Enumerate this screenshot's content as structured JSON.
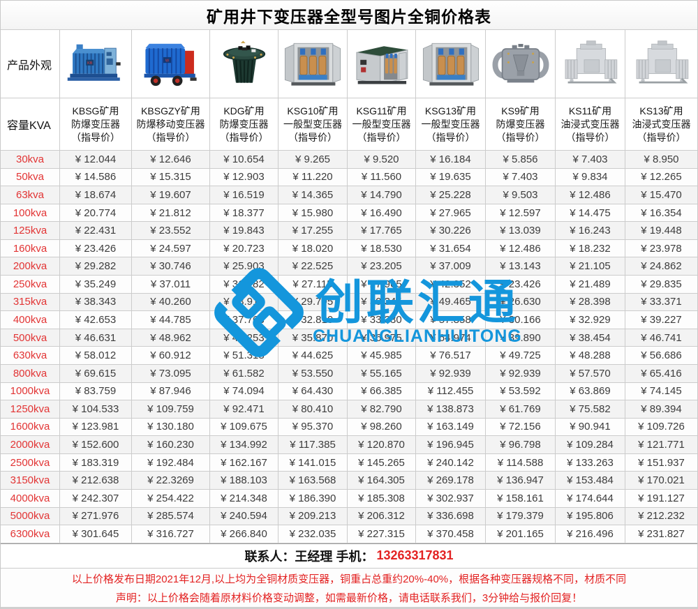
{
  "title": "矿用井下变压器全型号图片全铜价格表",
  "table": {
    "appearance_label": "产品外观",
    "capacity_label": "容量KVA",
    "columns": [
      {
        "l1": "KBSG矿用",
        "l2": "防爆变压器",
        "l3": "（指导价）"
      },
      {
        "l1": "KBSGZY矿用",
        "l2": "防爆移动变压器",
        "l3": "（指导价）"
      },
      {
        "l1": "KDG矿用",
        "l2": "防爆变压器",
        "l3": "（指导价）"
      },
      {
        "l1": "KSG10矿用",
        "l2": "一般型变压器",
        "l3": "（指导价）"
      },
      {
        "l1": "KSG11矿用",
        "l2": "一般型变压器",
        "l3": "（指导价）"
      },
      {
        "l1": "KSG13矿用",
        "l2": "一般型变压器",
        "l3": "（指导价）"
      },
      {
        "l1": "KS9矿用",
        "l2": "防爆变压器",
        "l3": "（指导价）"
      },
      {
        "l1": "KS11矿用",
        "l2": "油浸式变压器",
        "l3": "（指导价）"
      },
      {
        "l1": "KS13矿用",
        "l2": "油浸式变压器",
        "l3": "（指导价）"
      }
    ],
    "rows": [
      {
        "capacity": "30kva",
        "prices": [
          "¥ 12.044",
          "¥ 12.646",
          "¥ 10.654",
          "¥ 9.265",
          "¥ 9.520",
          "¥ 16.184",
          "¥ 5.856",
          "¥ 7.403",
          "¥ 8.950"
        ]
      },
      {
        "capacity": "50kva",
        "prices": [
          "¥ 14.586",
          "¥ 15.315",
          "¥ 12.903",
          "¥ 11.220",
          "¥ 11.560",
          "¥ 19.635",
          "¥ 7.403",
          "¥ 9.834",
          "¥ 12.265"
        ]
      },
      {
        "capacity": "63kva",
        "prices": [
          "¥ 18.674",
          "¥ 19.607",
          "¥ 16.519",
          "¥ 14.365",
          "¥ 14.790",
          "¥ 25.228",
          "¥ 9.503",
          "¥ 12.486",
          "¥ 15.470"
        ]
      },
      {
        "capacity": "100kva",
        "prices": [
          "¥ 20.774",
          "¥ 21.812",
          "¥ 18.377",
          "¥ 15.980",
          "¥ 16.490",
          "¥ 27.965",
          "¥ 12.597",
          "¥ 14.475",
          "¥ 16.354"
        ]
      },
      {
        "capacity": "125kva",
        "prices": [
          "¥ 22.431",
          "¥ 23.552",
          "¥ 19.843",
          "¥ 17.255",
          "¥ 17.765",
          "¥ 30.226",
          "¥ 13.039",
          "¥ 16.243",
          "¥ 19.448"
        ]
      },
      {
        "capacity": "160kva",
        "prices": [
          "¥ 23.426",
          "¥ 24.597",
          "¥ 20.723",
          "¥ 18.020",
          "¥ 18.530",
          "¥ 31.654",
          "¥ 12.486",
          "¥ 18.232",
          "¥ 23.978"
        ]
      },
      {
        "capacity": "200kva",
        "prices": [
          "¥ 29.282",
          "¥ 30.746",
          "¥ 25.903",
          "¥ 22.525",
          "¥ 23.205",
          "¥ 37.009",
          "¥ 13.143",
          "¥ 21.105",
          "¥ 24.862"
        ]
      },
      {
        "capacity": "250kva",
        "prices": [
          "¥ 35.249",
          "¥ 37.011",
          "¥ 31.182",
          "¥ 27.115",
          "¥ 27.965",
          "¥ 42.352",
          "¥ 23.426",
          "¥ 21.489",
          "¥ 29.835"
        ]
      },
      {
        "capacity": "315kva",
        "prices": [
          "¥ 38.343",
          "¥ 40.260",
          "¥ 33.919",
          "¥ 29.795",
          "¥ 30.345",
          "¥ 49.465",
          "¥ 26.630",
          "¥ 28.398",
          "¥ 33.371"
        ]
      },
      {
        "capacity": "400kva",
        "prices": [
          "¥ 42.653",
          "¥ 44.785",
          "¥ 37.763",
          "¥ 32.810",
          "¥ 33.330",
          "¥ 57.858",
          "¥ 30.166",
          "¥ 32.929",
          "¥ 39.227"
        ]
      },
      {
        "capacity": "500kva",
        "prices": [
          "¥ 46.631",
          "¥ 48.962",
          "¥ 41.253",
          "¥ 35.870",
          "¥ 36.975",
          "¥ 64.974",
          "¥ 39.890",
          "¥ 38.454",
          "¥ 46.741"
        ]
      },
      {
        "capacity": "630kva",
        "prices": [
          "¥ 58.012",
          "¥ 60.912",
          "¥ 51.318",
          "¥ 44.625",
          "¥ 45.985",
          "¥ 76.517",
          "¥ 49.725",
          "¥ 48.288",
          "¥ 56.686"
        ]
      },
      {
        "capacity": "800kva",
        "prices": [
          "¥ 69.615",
          "¥ 73.095",
          "¥ 61.582",
          "¥ 53.550",
          "¥ 55.165",
          "¥ 92.939",
          "¥ 92.939",
          "¥ 57.570",
          "¥ 65.416"
        ]
      },
      {
        "capacity": "1000kva",
        "prices": [
          "¥ 83.759",
          "¥ 87.946",
          "¥ 74.094",
          "¥ 64.430",
          "¥ 66.385",
          "¥ 112.455",
          "¥ 53.592",
          "¥ 63.869",
          "¥ 74.145"
        ]
      },
      {
        "capacity": "1250kva",
        "prices": [
          "¥ 104.533",
          "¥ 109.759",
          "¥ 92.471",
          "¥ 80.410",
          "¥ 82.790",
          "¥ 138.873",
          "¥ 61.769",
          "¥ 75.582",
          "¥ 89.394"
        ]
      },
      {
        "capacity": "1600kva",
        "prices": [
          "¥ 123.981",
          "¥ 130.180",
          "¥ 109.675",
          "¥ 95.370",
          "¥ 98.260",
          "¥ 163.149",
          "¥ 72.156",
          "¥ 90.941",
          "¥ 109.726"
        ]
      },
      {
        "capacity": "2000kva",
        "prices": [
          "¥ 152.600",
          "¥ 160.230",
          "¥ 134.992",
          "¥ 117.385",
          "¥ 120.870",
          "¥ 196.945",
          "¥ 96.798",
          "¥ 109.284",
          "¥ 121.771"
        ]
      },
      {
        "capacity": "2500kva",
        "prices": [
          "¥ 183.319",
          "¥ 192.484",
          "¥ 162.167",
          "¥ 141.015",
          "¥ 145.265",
          "¥ 240.142",
          "¥ 114.588",
          "¥ 133.263",
          "¥ 151.937"
        ]
      },
      {
        "capacity": "3150kva",
        "prices": [
          "¥ 212.638",
          "¥ 22.3269",
          "¥ 188.103",
          "¥ 163.568",
          "¥ 164.305",
          "¥ 269.178",
          "¥ 136.947",
          "¥ 153.484",
          "¥ 170.021"
        ]
      },
      {
        "capacity": "4000kva",
        "prices": [
          "¥ 242.307",
          "¥ 254.422",
          "¥ 214.348",
          "¥ 186.390",
          "¥ 185.308",
          "¥ 302.937",
          "¥ 158.161",
          "¥ 174.644",
          "¥ 191.127"
        ]
      },
      {
        "capacity": "5000kva",
        "prices": [
          "¥ 271.976",
          "¥ 285.574",
          "¥ 240.594",
          "¥ 209.213",
          "¥ 206.312",
          "¥ 336.698",
          "¥ 179.379",
          "¥ 195.806",
          "¥ 212.232"
        ]
      },
      {
        "capacity": "6300kva",
        "prices": [
          "¥ 301.645",
          "¥ 316.727",
          "¥ 266.840",
          "¥ 232.035",
          "¥ 227.315",
          "¥ 370.458",
          "¥ 201.165",
          "¥ 216.496",
          "¥ 231.827"
        ]
      }
    ]
  },
  "watermark": {
    "cn": "创联汇通",
    "en": "CHUANGLIANHUITONG",
    "color": "#1496dc"
  },
  "contact": {
    "label": "联系人：王经理  手机：",
    "phone": "13263317831"
  },
  "disclaimer": {
    "line1": "以上价格发布日期2021年12月,以上均为全铜材质变压器，铜重占总重约20%-40%，根据各种变压器规格不同，材质不同",
    "line2": "声明：以上价格会随着原材料价格变动调整，如需最新价格，请电话联系我们，3分钟给与报价回复！"
  }
}
